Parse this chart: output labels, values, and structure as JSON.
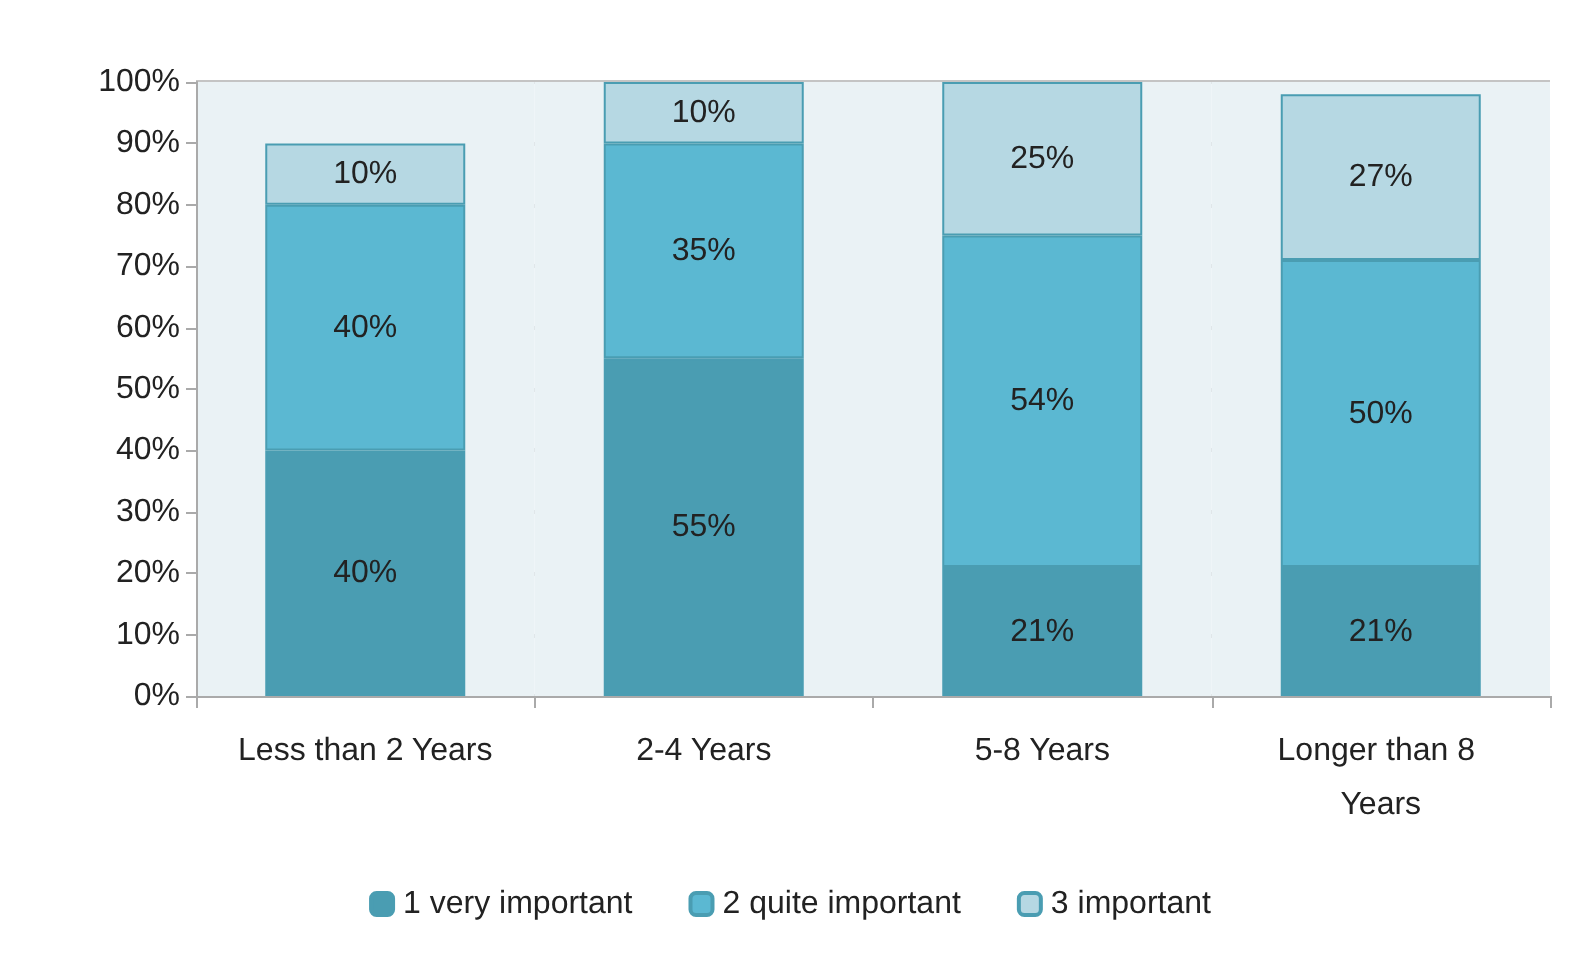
{
  "chart_data": {
    "type": "bar",
    "stacked": true,
    "categories": [
      "Less than 2 Years",
      "2-4 Years",
      "5-8 Years",
      "Longer than 8 Years"
    ],
    "series": [
      {
        "name": "1 very important",
        "color": "#4a9db2",
        "values": [
          40,
          55,
          21,
          21
        ],
        "value_labels": [
          "40%",
          "55%",
          "21%",
          "21%"
        ]
      },
      {
        "name": "2 quite important",
        "color": "#5bb8d2",
        "values": [
          40,
          35,
          54,
          50
        ],
        "value_labels": [
          "40%",
          "35%",
          "54%",
          "50%"
        ]
      },
      {
        "name": "3 important",
        "color": "#b6d8e3",
        "values": [
          10,
          10,
          25,
          27
        ],
        "value_labels": [
          "10%",
          "10%",
          "25%",
          "27%"
        ]
      }
    ],
    "ylim": [
      0,
      100
    ],
    "yticks": [
      {
        "value": 0,
        "label": "0%"
      },
      {
        "value": 10,
        "label": "10%"
      },
      {
        "value": 20,
        "label": "20%"
      },
      {
        "value": 30,
        "label": "30%"
      },
      {
        "value": 40,
        "label": "40%"
      },
      {
        "value": 50,
        "label": "50%"
      },
      {
        "value": 60,
        "label": "60%"
      },
      {
        "value": 70,
        "label": "70%"
      },
      {
        "value": 80,
        "label": "80%"
      },
      {
        "value": 90,
        "label": "90%"
      },
      {
        "value": 100,
        "label": "100%"
      }
    ],
    "grid": "y",
    "legend": "bottom"
  }
}
